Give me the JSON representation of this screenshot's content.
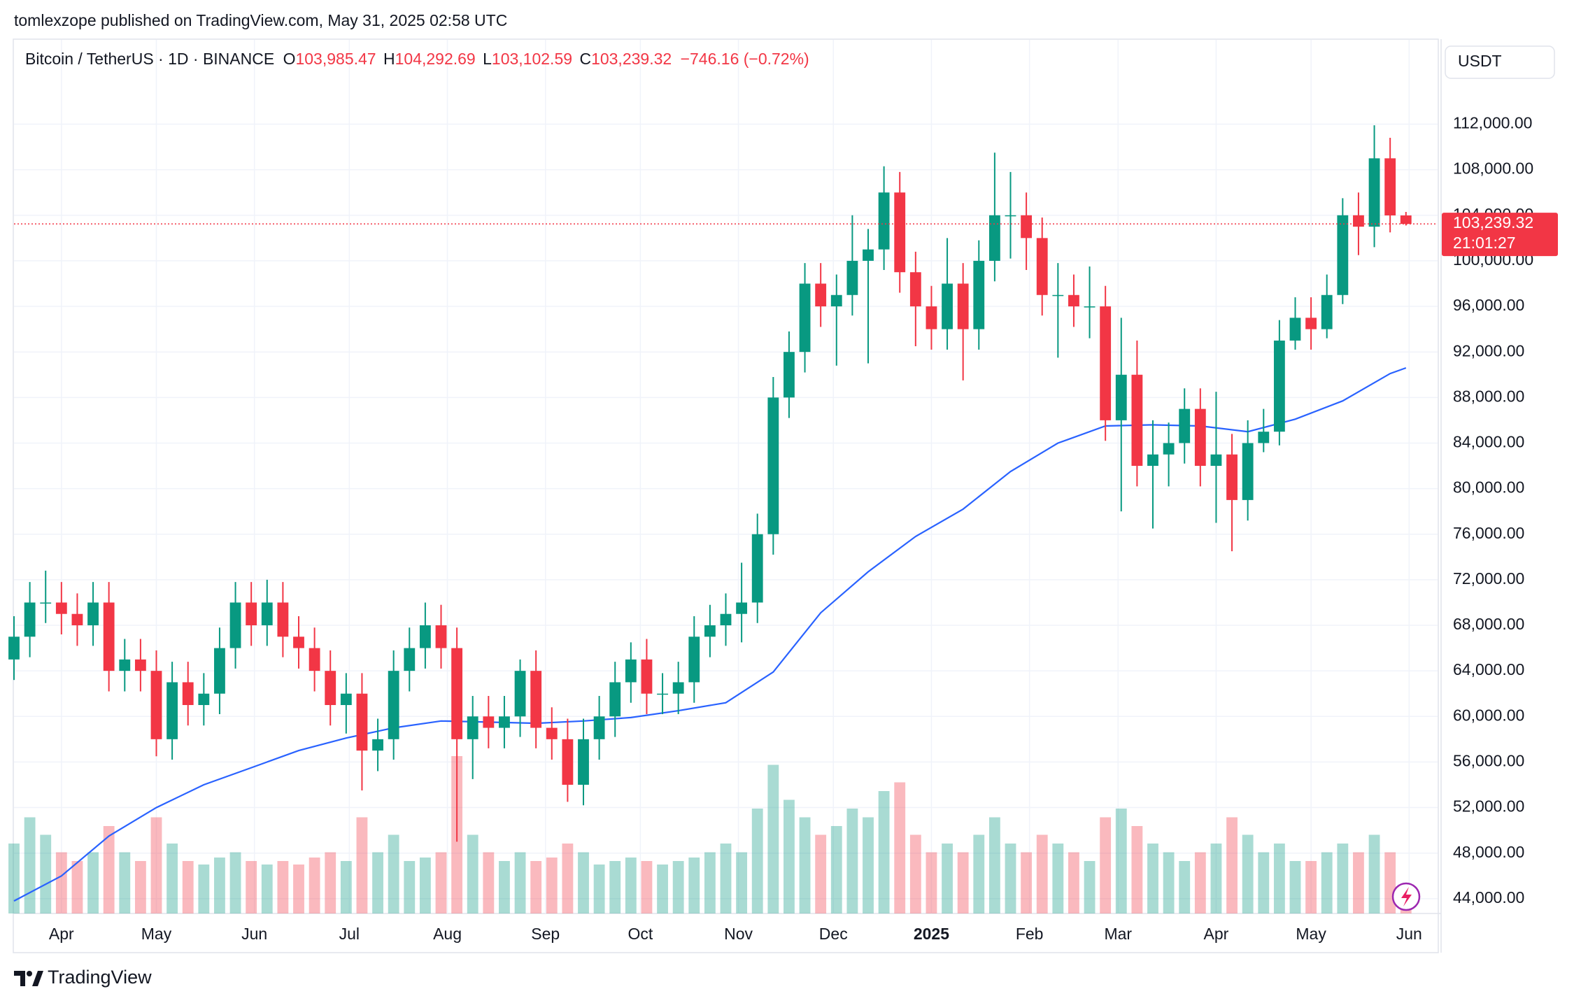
{
  "header": {
    "publisher": "tomlexzope published on TradingView.com, May 31, 2025 02:58 UTC",
    "symbol": "Bitcoin / TetherUS · 1D · BINANCE",
    "ohlc": [
      {
        "key": "O",
        "value": "103,985.47"
      },
      {
        "key": "H",
        "value": "104,292.69"
      },
      {
        "key": "L",
        "value": "103,102.59"
      },
      {
        "key": "C",
        "value": "103,239.32"
      }
    ],
    "change": "−746.16 (−0.72%)"
  },
  "footer": {
    "brand": "TradingView"
  },
  "chart_data": {
    "type": "candlestick",
    "currency": "USDT",
    "x": [
      -15,
      -10,
      -5,
      0,
      5,
      10,
      15,
      20,
      25,
      30,
      35,
      40,
      45,
      50,
      55,
      60,
      65,
      70,
      75,
      80,
      85,
      90,
      95,
      100,
      105,
      110,
      115,
      120,
      125,
      130,
      135,
      140,
      145,
      150,
      155,
      160,
      165,
      170,
      175,
      180,
      185,
      190,
      195,
      200,
      205,
      210,
      215,
      220,
      225,
      230,
      235,
      240,
      245,
      250,
      255,
      260,
      265,
      270,
      275,
      280,
      285,
      290,
      295,
      300,
      305,
      310,
      315,
      320,
      325,
      330,
      335,
      340,
      345,
      350,
      355,
      360,
      365,
      370,
      375,
      380,
      385,
      390,
      395,
      400,
      405,
      410,
      415,
      420,
      425
    ],
    "open": [
      65000,
      67000,
      70000,
      70000,
      69000,
      68000,
      70000,
      64000,
      65000,
      64000,
      58000,
      63000,
      61000,
      62000,
      66000,
      70000,
      68000,
      70000,
      67000,
      66000,
      64000,
      61000,
      62000,
      57000,
      58000,
      64000,
      66000,
      68000,
      66000,
      58000,
      60000,
      59000,
      60000,
      64000,
      59000,
      58000,
      54000,
      58000,
      60000,
      63000,
      65000,
      62000,
      62000,
      63000,
      67000,
      68000,
      69000,
      70000,
      76000,
      88000,
      92000,
      98000,
      96000,
      97000,
      100000,
      101000,
      106000,
      99000,
      96000,
      94000,
      98000,
      94000,
      100000,
      104000,
      104000,
      102000,
      97000,
      97000,
      96000,
      96000,
      86000,
      90000,
      82000,
      83000,
      84000,
      87000,
      82000,
      83000,
      79000,
      84000,
      85000,
      93000,
      95000,
      94000,
      97000,
      104000,
      103000,
      109000,
      103985.47
    ],
    "high": [
      68800,
      71800,
      72800,
      71800,
      70800,
      71800,
      71800,
      66800,
      66800,
      65800,
      64800,
      64800,
      63800,
      67800,
      71800,
      71800,
      72000,
      71800,
      68800,
      67800,
      65800,
      63800,
      63800,
      59800,
      65800,
      67800,
      70000,
      69800,
      67800,
      61800,
      61800,
      61800,
      65000,
      65800,
      60800,
      59800,
      59800,
      61800,
      64800,
      66500,
      66800,
      63800,
      64800,
      68800,
      69800,
      70800,
      73500,
      77800,
      89800,
      93800,
      99800,
      99800,
      98800,
      104000,
      102800,
      108300,
      107800,
      100800,
      97800,
      102000,
      99800,
      101800,
      109500,
      107800,
      106000,
      103800,
      99800,
      98800,
      99500,
      97800,
      95000,
      93000,
      86000,
      85800,
      88800,
      88800,
      88500,
      84800,
      86000,
      87000,
      94800,
      96800,
      96800,
      98800,
      105500,
      106000,
      111900,
      110800,
      104292.69
    ],
    "low": [
      63200,
      65200,
      68200,
      67200,
      66200,
      66200,
      62200,
      62200,
      62200,
      56500,
      56200,
      59200,
      59200,
      60200,
      64200,
      66200,
      66200,
      65200,
      64200,
      62200,
      59200,
      58500,
      53500,
      55200,
      56200,
      62200,
      64200,
      64200,
      49000,
      54500,
      57200,
      57200,
      58200,
      57200,
      56200,
      52500,
      52200,
      56200,
      58200,
      61200,
      60200,
      60200,
      60200,
      61200,
      65200,
      66200,
      66500,
      68200,
      74200,
      86200,
      90200,
      94200,
      90800,
      95200,
      91000,
      99200,
      97200,
      92500,
      92200,
      92200,
      89500,
      92200,
      98200,
      100200,
      99200,
      95200,
      91500,
      94200,
      93200,
      84200,
      78000,
      80200,
      76500,
      80200,
      82200,
      80200,
      77000,
      74500,
      77200,
      83200,
      83800,
      92200,
      92200,
      93200,
      96200,
      100500,
      101200,
      102500,
      103102.59
    ],
    "close": [
      67000,
      70000,
      70000,
      69000,
      68000,
      70000,
      64000,
      65000,
      64000,
      58000,
      63000,
      61000,
      62000,
      66000,
      70000,
      68000,
      70000,
      67000,
      66000,
      64000,
      61000,
      62000,
      57000,
      58000,
      64000,
      66000,
      68000,
      66000,
      58000,
      60000,
      59000,
      60000,
      64000,
      59000,
      58000,
      54000,
      58000,
      60000,
      63000,
      65000,
      62000,
      62000,
      63000,
      67000,
      68000,
      69000,
      70000,
      76000,
      88000,
      92000,
      98000,
      96000,
      97000,
      100000,
      101000,
      106000,
      99000,
      96000,
      94000,
      98000,
      94000,
      100000,
      104000,
      104000,
      102000,
      97000,
      97000,
      96000,
      96000,
      86000,
      90000,
      82000,
      83000,
      84000,
      87000,
      82000,
      83000,
      79000,
      84000,
      85000,
      93000,
      95000,
      94000,
      97000,
      104000,
      103000,
      109000,
      103985.47,
      103239.32
    ],
    "volume": [
      40,
      55,
      45,
      35,
      30,
      35,
      50,
      35,
      30,
      55,
      40,
      30,
      28,
      32,
      35,
      30,
      28,
      30,
      28,
      32,
      35,
      30,
      55,
      35,
      45,
      30,
      32,
      35,
      90,
      45,
      35,
      30,
      35,
      30,
      32,
      40,
      35,
      28,
      30,
      32,
      30,
      28,
      30,
      32,
      35,
      40,
      35,
      60,
      85,
      65,
      55,
      45,
      50,
      60,
      55,
      70,
      75,
      45,
      35,
      40,
      35,
      45,
      55,
      40,
      35,
      45,
      40,
      35,
      30,
      55,
      60,
      50,
      40,
      35,
      30,
      35,
      40,
      55,
      45,
      35,
      40,
      30,
      30,
      35,
      40,
      35,
      45,
      35,
      15
    ],
    "vlim": [
      0,
      100
    ],
    "up_color": "#089981",
    "down_color": "#f23645",
    "ma": {
      "color": "#2962ff",
      "x": [
        -15,
        0,
        15,
        30,
        45,
        60,
        75,
        90,
        105,
        120,
        135,
        150,
        165,
        180,
        195,
        210,
        225,
        240,
        255,
        270,
        285,
        300,
        315,
        330,
        345,
        360,
        375,
        390,
        405,
        420,
        425
      ],
      "values": [
        43800,
        46000,
        49500,
        52000,
        54000,
        55500,
        57000,
        58100,
        59000,
        59600,
        59500,
        59400,
        59600,
        59900,
        60500,
        61200,
        63900,
        69100,
        72700,
        75800,
        78200,
        81500,
        84000,
        85500,
        85600,
        85500,
        85000,
        86100,
        87700,
        90100,
        90600
      ]
    },
    "last_price": {
      "value": 103239.32,
      "label": "103,239.32"
    },
    "countdown": "21:01:27",
    "xlim": [
      -15,
      435
    ],
    "xticks": [
      {
        "value": 0,
        "label": "Apr"
      },
      {
        "value": 30,
        "label": "May"
      },
      {
        "value": 61,
        "label": "Jun"
      },
      {
        "value": 91,
        "label": "Jul"
      },
      {
        "value": 122,
        "label": "Aug"
      },
      {
        "value": 153,
        "label": "Sep"
      },
      {
        "value": 183,
        "label": "Oct"
      },
      {
        "value": 214,
        "label": "Nov"
      },
      {
        "value": 244,
        "label": "Dec"
      },
      {
        "value": 275,
        "label": "2025",
        "bold": true
      },
      {
        "value": 306,
        "label": "Feb"
      },
      {
        "value": 334,
        "label": "Mar"
      },
      {
        "value": 365,
        "label": "Apr"
      },
      {
        "value": 395,
        "label": "May"
      },
      {
        "value": 426,
        "label": "Jun"
      }
    ],
    "ylim": [
      42700,
      119400
    ],
    "yticks": [
      {
        "value": 44000,
        "label": "44,000.00"
      },
      {
        "value": 48000,
        "label": "48,000.00"
      },
      {
        "value": 52000,
        "label": "52,000.00"
      },
      {
        "value": 56000,
        "label": "56,000.00"
      },
      {
        "value": 60000,
        "label": "60,000.00"
      },
      {
        "value": 64000,
        "label": "64,000.00"
      },
      {
        "value": 68000,
        "label": "68,000.00"
      },
      {
        "value": 72000,
        "label": "72,000.00"
      },
      {
        "value": 76000,
        "label": "76,000.00"
      },
      {
        "value": 80000,
        "label": "80,000.00"
      },
      {
        "value": 84000,
        "label": "84,000.00"
      },
      {
        "value": 88000,
        "label": "88,000.00"
      },
      {
        "value": 92000,
        "label": "92,000.00"
      },
      {
        "value": 96000,
        "label": "96,000.00"
      },
      {
        "value": 100000,
        "label": "100,000.00"
      },
      {
        "value": 104000,
        "label": "104,000.00"
      },
      {
        "value": 108000,
        "label": "108,000.00"
      },
      {
        "value": 112000,
        "label": "112,000.00"
      }
    ],
    "grid": true
  }
}
